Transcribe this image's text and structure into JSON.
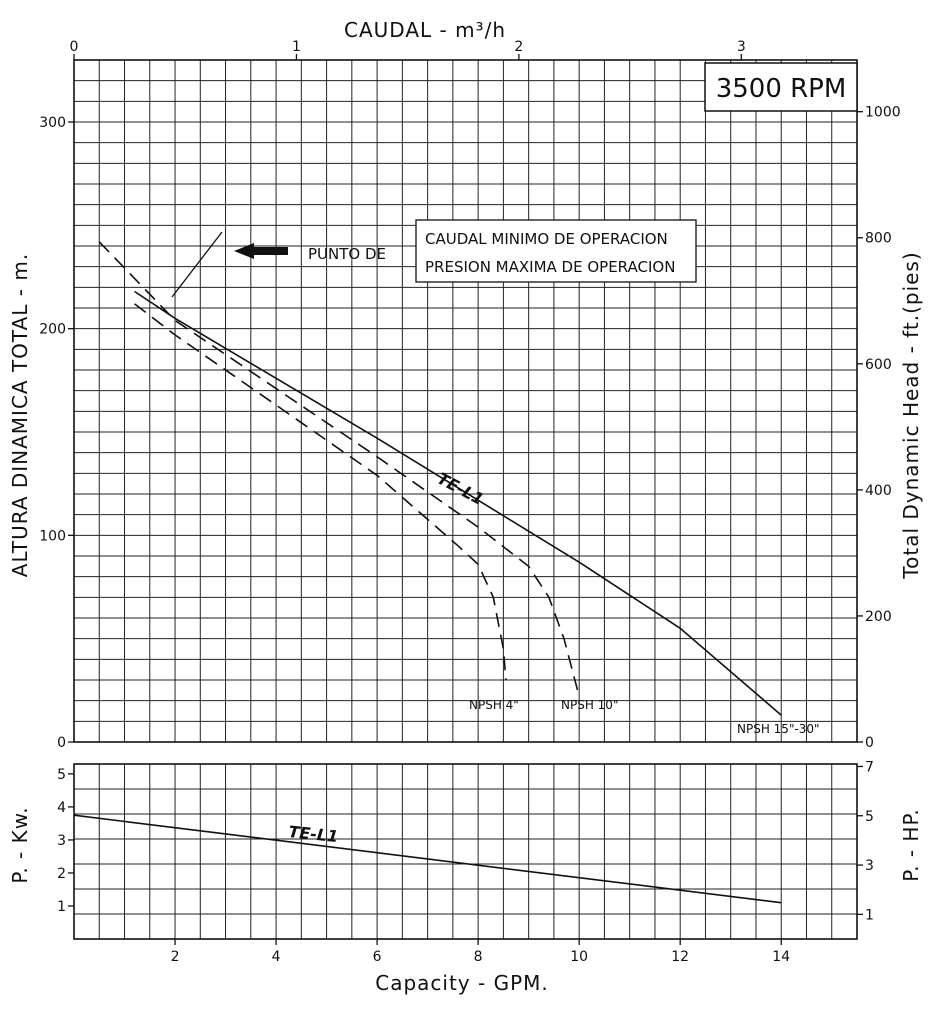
{
  "chart_data": [
    {
      "type": "line",
      "panel": "head",
      "rpm_label": "3500 RPM",
      "xlabel": "Capacity - GPM.",
      "xlim": [
        0,
        15.5
      ],
      "xticks": [
        2,
        4,
        6,
        8,
        10,
        12,
        14
      ],
      "x2label": "CAUDAL  - m³/h",
      "x2lim": [
        0,
        3.52
      ],
      "x2ticks": [
        0,
        1,
        2,
        3
      ],
      "ylabel": "ALTURA DINAMICA TOTAL  -  m.",
      "ylim": [
        0,
        330
      ],
      "yticks": [
        0,
        100,
        200,
        300
      ],
      "y2label": "Total Dynamic Head  -  ft.(pies)",
      "y2lim": [
        0,
        1082
      ],
      "y2ticks": [
        0,
        200,
        400,
        600,
        800,
        1000
      ],
      "grid": true,
      "annotation": {
        "lead": "PUNTO DE",
        "lines": [
          "CAUDAL MINIMO DE OPERACION",
          "PRESION MAXIMA DE OPERACION"
        ]
      },
      "model_label": "TE-L1",
      "series": [
        {
          "name": "NPSH 15\"-30\"",
          "style": "solid",
          "x": [
            1.2,
            2.0,
            4.0,
            6.0,
            8.0,
            10.0,
            12.0,
            14.0
          ],
          "y": [
            218,
            205,
            176,
            147,
            117,
            87,
            55,
            13
          ]
        },
        {
          "name": "NPSH 10\"",
          "style": "dashed",
          "x": [
            0.5,
            2.0,
            4.0,
            6.0,
            8.0,
            9.0,
            9.4,
            9.7,
            10.0
          ],
          "y": [
            242,
            204,
            171,
            138,
            104,
            85,
            70,
            50,
            22
          ]
        },
        {
          "name": "NPSH 4\"",
          "style": "dashed",
          "x": [
            1.2,
            2.0,
            4.0,
            6.0,
            7.6,
            8.0,
            8.3,
            8.5,
            8.55
          ],
          "y": [
            212,
            197,
            163,
            129,
            95,
            86,
            70,
            45,
            30
          ]
        }
      ]
    },
    {
      "type": "line",
      "panel": "power",
      "xlabel": "Capacity - GPM.",
      "xlim": [
        0,
        15.5
      ],
      "xticks": [
        2,
        4,
        6,
        8,
        10,
        12,
        14
      ],
      "ylabel": "P.  -  Kw.",
      "ylim": [
        0,
        5.3
      ],
      "yticks": [
        1,
        2,
        3,
        4,
        5
      ],
      "y2label": "P.  -  HP.",
      "y2lim": [
        0,
        7.1
      ],
      "y2ticks": [
        1,
        3,
        5,
        7
      ],
      "grid": true,
      "model_label": "TE-L1",
      "series": [
        {
          "name": "TE-L1",
          "style": "solid",
          "x": [
            0,
            14
          ],
          "y": [
            3.75,
            1.1
          ]
        }
      ]
    }
  ]
}
